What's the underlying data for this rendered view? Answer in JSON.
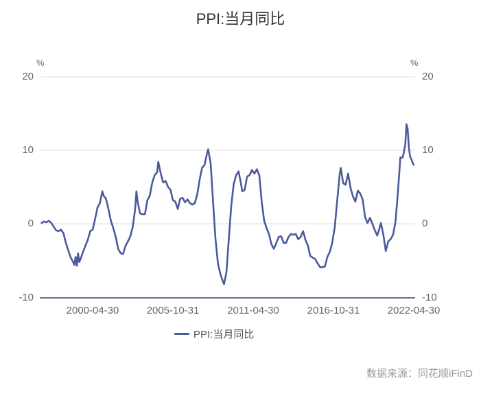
{
  "chart": {
    "title": "PPI:当月同比",
    "left_unit": "%",
    "right_unit": "%",
    "legend_label": "PPI:当月同比",
    "source": "数据来源：同花顺iFinD",
    "line_color": "#4b5a9a",
    "grid_color": "#e8e8f0",
    "axis_color": "#6a6f96",
    "yticks": [
      "20",
      "10",
      "0",
      "-10"
    ],
    "xticks": [
      "2000-04-30",
      "2005-10-31",
      "2011-04-30",
      "2016-10-31",
      "2022-04-30"
    ]
  },
  "chart_data": {
    "type": "line",
    "title": "PPI:当月同比",
    "xlabel": "",
    "ylabel": "%",
    "ylim": [
      -10,
      20
    ],
    "y_ticks": [
      -10,
      0,
      10,
      20
    ],
    "x_tick_labels": [
      "2000-04-30",
      "2005-10-31",
      "2011-04-30",
      "2016-10-31",
      "2022-04-30"
    ],
    "grid": true,
    "legend_position": "bottom",
    "series": [
      {
        "name": "PPI:当月同比",
        "points": [
          [
            "1996-10",
            0.1
          ],
          [
            "1996-12",
            0.3
          ],
          [
            "1997-02",
            0.2
          ],
          [
            "1997-04",
            0.4
          ],
          [
            "1997-06",
            0.1
          ],
          [
            "1997-08",
            -0.4
          ],
          [
            "1997-10",
            -0.9
          ],
          [
            "1997-12",
            -1.0
          ],
          [
            "1998-02",
            -0.8
          ],
          [
            "1998-04",
            -1.3
          ],
          [
            "1998-06",
            -2.6
          ],
          [
            "1998-08",
            -3.6
          ],
          [
            "1998-10",
            -4.6
          ],
          [
            "1998-12",
            -5.2
          ],
          [
            "1999-01",
            -5.6
          ],
          [
            "1999-02",
            -4.5
          ],
          [
            "1999-03",
            -5.7
          ],
          [
            "1999-04",
            -4.0
          ],
          [
            "1999-05",
            -5.2
          ],
          [
            "1999-06",
            -4.8
          ],
          [
            "1999-08",
            -3.9
          ],
          [
            "1999-10",
            -3.0
          ],
          [
            "1999-12",
            -2.2
          ],
          [
            "2000-02",
            -1.0
          ],
          [
            "2000-04",
            -0.8
          ],
          [
            "2000-06",
            0.6
          ],
          [
            "2000-08",
            2.2
          ],
          [
            "2000-10",
            2.8
          ],
          [
            "2000-12",
            4.4
          ],
          [
            "2001-01",
            3.8
          ],
          [
            "2001-03",
            3.4
          ],
          [
            "2001-05",
            2.0
          ],
          [
            "2001-07",
            0.4
          ],
          [
            "2001-09",
            -0.6
          ],
          [
            "2001-11",
            -1.8
          ],
          [
            "2002-01",
            -3.4
          ],
          [
            "2002-03",
            -4.0
          ],
          [
            "2002-05",
            -4.1
          ],
          [
            "2002-07",
            -3.0
          ],
          [
            "2002-09",
            -2.4
          ],
          [
            "2002-11",
            -1.7
          ],
          [
            "2003-01",
            -0.4
          ],
          [
            "2003-03",
            2.0
          ],
          [
            "2003-04",
            4.4
          ],
          [
            "2003-05",
            3.0
          ],
          [
            "2003-07",
            1.4
          ],
          [
            "2003-09",
            1.3
          ],
          [
            "2003-11",
            1.3
          ],
          [
            "2004-01",
            3.2
          ],
          [
            "2004-03",
            3.8
          ],
          [
            "2004-05",
            5.6
          ],
          [
            "2004-07",
            6.6
          ],
          [
            "2004-09",
            7.0
          ],
          [
            "2004-10",
            8.4
          ],
          [
            "2004-12",
            6.8
          ],
          [
            "2005-02",
            5.6
          ],
          [
            "2005-04",
            5.8
          ],
          [
            "2005-06",
            5.0
          ],
          [
            "2005-08",
            4.6
          ],
          [
            "2005-10",
            3.2
          ],
          [
            "2005-12",
            3.0
          ],
          [
            "2006-02",
            2.0
          ],
          [
            "2006-04",
            3.4
          ],
          [
            "2006-06",
            3.5
          ],
          [
            "2006-08",
            2.9
          ],
          [
            "2006-10",
            3.3
          ],
          [
            "2006-12",
            2.8
          ],
          [
            "2007-02",
            2.6
          ],
          [
            "2007-04",
            2.8
          ],
          [
            "2007-06",
            4.0
          ],
          [
            "2007-08",
            6.0
          ],
          [
            "2007-10",
            7.6
          ],
          [
            "2007-12",
            8.0
          ],
          [
            "2008-02",
            9.5
          ],
          [
            "2008-03",
            10.1
          ],
          [
            "2008-05",
            8.2
          ],
          [
            "2008-07",
            3.0
          ],
          [
            "2008-09",
            -2.0
          ],
          [
            "2008-11",
            -5.4
          ],
          [
            "2009-01",
            -6.8
          ],
          [
            "2009-03",
            -7.8
          ],
          [
            "2009-04",
            -8.2
          ],
          [
            "2009-06",
            -6.6
          ],
          [
            "2009-08",
            -2.0
          ],
          [
            "2009-10",
            2.5
          ],
          [
            "2009-12",
            5.4
          ],
          [
            "2010-02",
            6.6
          ],
          [
            "2010-04",
            7.1
          ],
          [
            "2010-06",
            5.4
          ],
          [
            "2010-07",
            4.4
          ],
          [
            "2010-09",
            4.6
          ],
          [
            "2010-11",
            6.4
          ],
          [
            "2011-01",
            6.6
          ],
          [
            "2011-03",
            7.3
          ],
          [
            "2011-05",
            6.8
          ],
          [
            "2011-07",
            7.4
          ],
          [
            "2011-09",
            6.6
          ],
          [
            "2011-11",
            3.0
          ],
          [
            "2012-01",
            0.4
          ],
          [
            "2012-03",
            -0.6
          ],
          [
            "2012-05",
            -1.4
          ],
          [
            "2012-07",
            -2.8
          ],
          [
            "2012-09",
            -3.4
          ],
          [
            "2012-11",
            -2.6
          ],
          [
            "2013-01",
            -1.8
          ],
          [
            "2013-03",
            -1.7
          ],
          [
            "2013-05",
            -2.6
          ],
          [
            "2013-07",
            -2.6
          ],
          [
            "2013-09",
            -1.8
          ],
          [
            "2013-11",
            -1.4
          ],
          [
            "2014-01",
            -1.5
          ],
          [
            "2014-03",
            -1.4
          ],
          [
            "2014-05",
            -2.1
          ],
          [
            "2014-07",
            -1.8
          ],
          [
            "2014-09",
            -1.0
          ],
          [
            "2014-11",
            -2.2
          ],
          [
            "2015-01",
            -3.0
          ],
          [
            "2015-03",
            -4.4
          ],
          [
            "2015-05",
            -4.6
          ],
          [
            "2015-07",
            -4.8
          ],
          [
            "2015-09",
            -5.4
          ],
          [
            "2015-11",
            -5.9
          ],
          [
            "2016-01",
            -5.9
          ],
          [
            "2016-03",
            -5.8
          ],
          [
            "2016-05",
            -4.5
          ],
          [
            "2016-07",
            -3.8
          ],
          [
            "2016-09",
            -2.6
          ],
          [
            "2016-11",
            -0.5
          ],
          [
            "2017-01",
            3.0
          ],
          [
            "2017-03",
            6.6
          ],
          [
            "2017-04",
            7.6
          ],
          [
            "2017-06",
            5.5
          ],
          [
            "2017-08",
            5.3
          ],
          [
            "2017-10",
            6.8
          ],
          [
            "2017-12",
            4.9
          ],
          [
            "2018-02",
            3.7
          ],
          [
            "2018-04",
            3.0
          ],
          [
            "2018-06",
            4.5
          ],
          [
            "2018-08",
            4.1
          ],
          [
            "2018-10",
            3.3
          ],
          [
            "2018-12",
            0.9
          ],
          [
            "2019-02",
            0.1
          ],
          [
            "2019-04",
            0.8
          ],
          [
            "2019-06",
            0.0
          ],
          [
            "2019-08",
            -0.9
          ],
          [
            "2019-10",
            -1.6
          ],
          [
            "2019-12",
            -0.5
          ],
          [
            "2020-01",
            0.1
          ],
          [
            "2020-03",
            -1.5
          ],
          [
            "2020-05",
            -3.7
          ],
          [
            "2020-07",
            -2.4
          ],
          [
            "2020-09",
            -2.1
          ],
          [
            "2020-11",
            -1.5
          ],
          [
            "2021-01",
            0.3
          ],
          [
            "2021-03",
            4.4
          ],
          [
            "2021-05",
            9.0
          ],
          [
            "2021-07",
            9.0
          ],
          [
            "2021-09",
            10.7
          ],
          [
            "2021-10",
            13.5
          ],
          [
            "2021-11",
            12.9
          ],
          [
            "2021-12",
            10.3
          ],
          [
            "2022-01",
            9.1
          ],
          [
            "2022-02",
            8.8
          ],
          [
            "2022-03",
            8.3
          ],
          [
            "2022-04",
            8.0
          ]
        ]
      }
    ]
  }
}
